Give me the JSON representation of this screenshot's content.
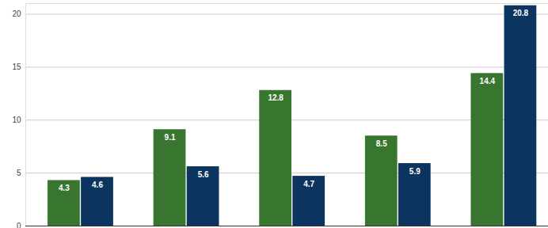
{
  "chart_data": {
    "type": "bar",
    "categories": [
      null,
      null,
      null,
      null,
      null
    ],
    "series": [
      {
        "color": "#38762f",
        "values": [
          4.3,
          9.1,
          12.8,
          8.5,
          14.4
        ]
      },
      {
        "color": "#0b355e",
        "values": [
          4.6,
          5.6,
          4.7,
          5.9,
          20.8
        ]
      }
    ],
    "ylim": [
      0,
      21
    ],
    "yticks": [
      0,
      5,
      10,
      15,
      20
    ],
    "grid": true,
    "data_labels": true,
    "tick_labels": "y"
  }
}
